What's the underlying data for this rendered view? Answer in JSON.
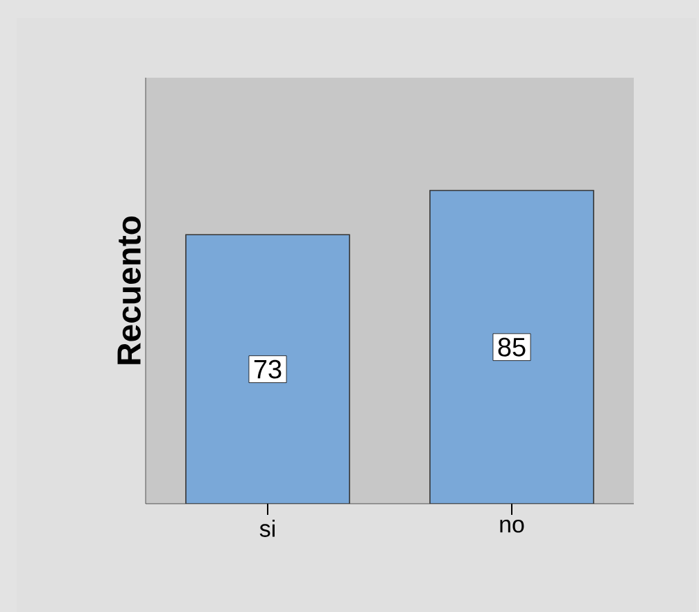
{
  "chart_data": {
    "type": "bar",
    "ylabel": "Recuento",
    "categories": [
      "si",
      "no"
    ],
    "values": [
      73,
      85
    ],
    "color": "#7aa8d8",
    "data_labels": true
  }
}
